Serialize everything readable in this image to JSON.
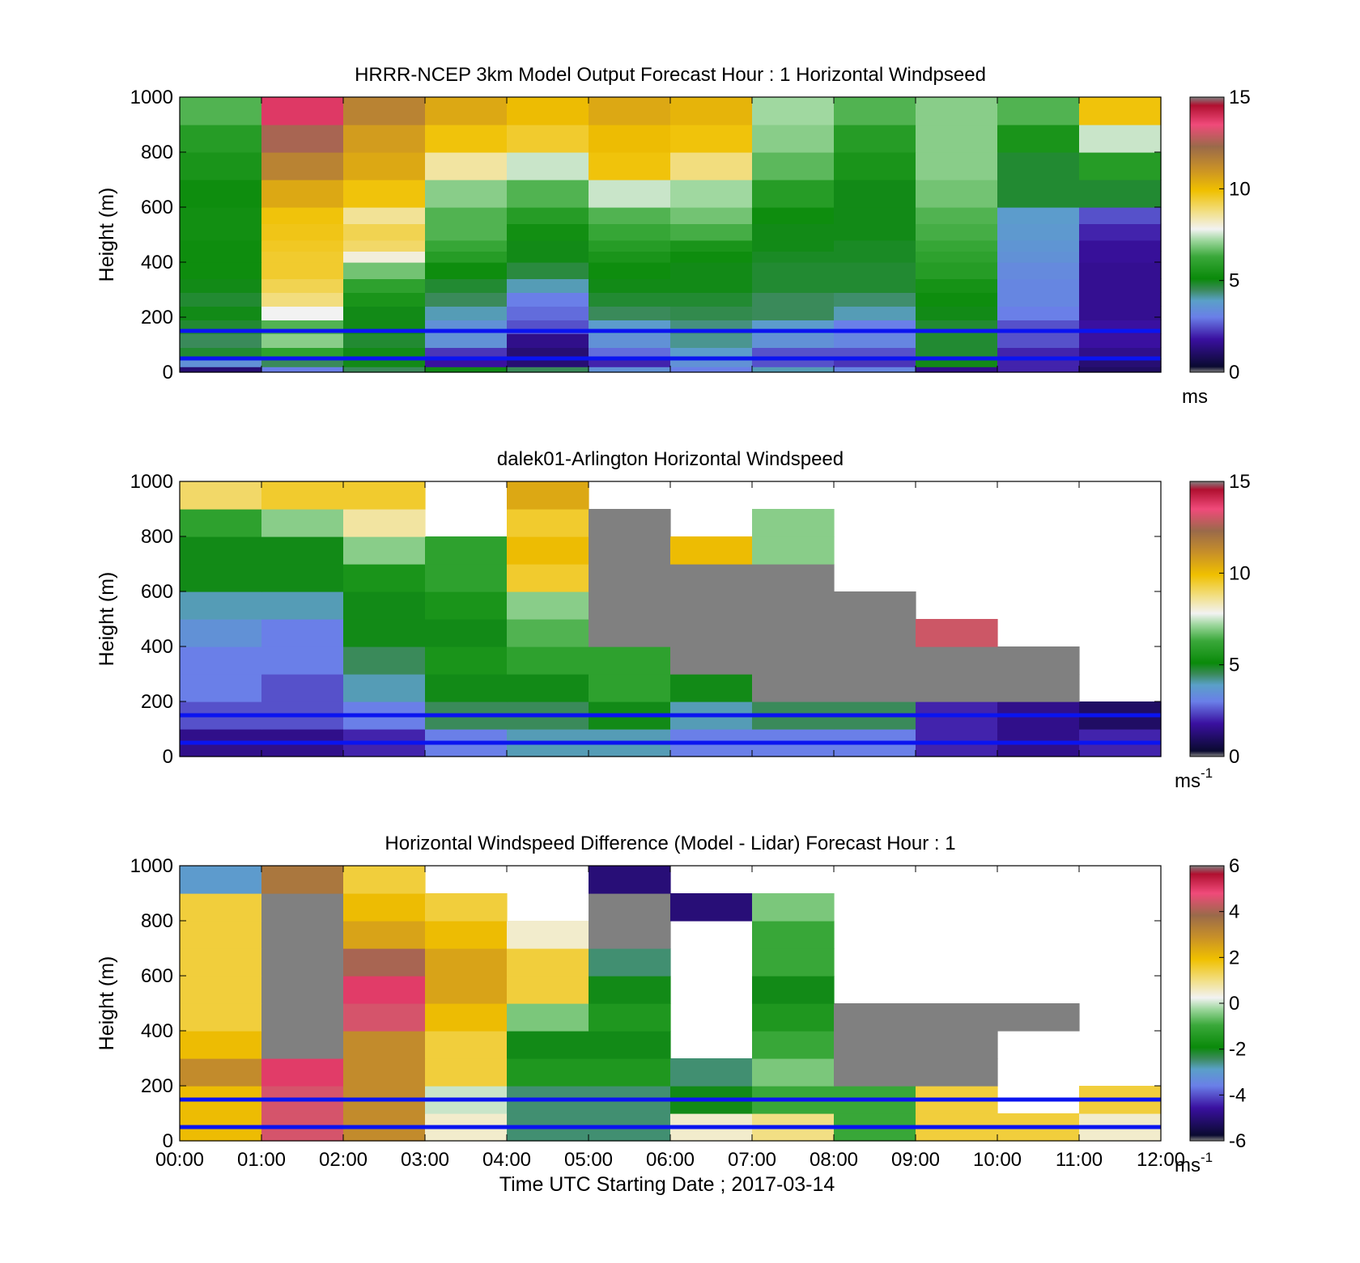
{
  "chart_data": [
    {
      "type": "heatmap",
      "title": "HRRR-NCEP 3km Model Output   Forecast Hour : 1 Horizontal Windpseed",
      "ylabel": "Height (m)",
      "xlabel": "",
      "ylim": [
        0,
        1000
      ],
      "yticks": [
        "0",
        "200",
        "400",
        "600",
        "800",
        "1000"
      ],
      "xticks": [
        "",
        "",
        "",
        "",
        "",
        "",
        "",
        "",
        "",
        "",
        "",
        "",
        ""
      ],
      "colorbar": {
        "min": 0,
        "max": 15,
        "ticks": [
          "0",
          "5",
          "10",
          "15"
        ],
        "unit": "ms",
        "unit_sup": ""
      },
      "hlines": [
        150,
        50
      ],
      "x_hours": [
        0,
        1,
        2,
        3,
        4,
        5,
        6,
        7,
        8,
        9,
        10,
        11,
        12
      ],
      "height_levels": [
        0,
        20,
        50,
        90,
        140,
        190,
        240,
        290,
        340,
        400,
        440,
        480,
        540,
        600,
        700,
        800,
        900,
        1000
      ],
      "values": [
        [
          1.2,
          3.0,
          4.5,
          5.0,
          4.5,
          3.5,
          3.0,
          4.0,
          3.2,
          1.5,
          2.0,
          1.0
        ],
        [
          3.5,
          4.5,
          5.0,
          1.8,
          1.2,
          2.0,
          3.5,
          2.5,
          2.2,
          5.0,
          2.0,
          1.2
        ],
        [
          4.8,
          6.0,
          5.0,
          2.2,
          1.2,
          2.8,
          3.8,
          2.5,
          2.5,
          4.8,
          2.0,
          1.5
        ],
        [
          4.5,
          7.0,
          4.8,
          3.5,
          1.5,
          3.5,
          4.2,
          3.5,
          3.2,
          4.8,
          2.5,
          1.8
        ],
        [
          4.8,
          6.5,
          5.0,
          3.5,
          2.5,
          3.8,
          4.3,
          3.8,
          3.0,
          4.8,
          2.5,
          1.8
        ],
        [
          5.0,
          7.8,
          5.0,
          4.0,
          2.8,
          4.5,
          4.6,
          4.5,
          4.0,
          5.0,
          3.0,
          1.6
        ],
        [
          4.8,
          8.8,
          5.5,
          4.5,
          3.0,
          4.8,
          4.8,
          4.5,
          4.4,
          5.2,
          3.2,
          1.6
        ],
        [
          5.0,
          9.2,
          6.0,
          4.8,
          4.0,
          5.0,
          5.0,
          4.8,
          4.8,
          5.4,
          3.2,
          1.6
        ],
        [
          5.2,
          9.5,
          6.8,
          5.2,
          4.7,
          5.2,
          5.0,
          4.8,
          4.8,
          5.8,
          3.3,
          1.6
        ],
        [
          5.2,
          9.5,
          8.0,
          5.8,
          5.0,
          5.5,
          5.2,
          4.9,
          4.9,
          6.0,
          3.5,
          1.7
        ],
        [
          5.2,
          9.6,
          9.0,
          6.2,
          5.0,
          5.8,
          5.5,
          5.0,
          4.9,
          6.2,
          3.6,
          1.7
        ],
        [
          5.3,
          9.7,
          9.2,
          6.5,
          5.3,
          6.2,
          6.4,
          5.0,
          5.0,
          6.4,
          3.7,
          2.0
        ],
        [
          5.3,
          9.8,
          8.6,
          6.5,
          5.8,
          6.5,
          6.8,
          5.2,
          5.0,
          6.5,
          3.8,
          2.5
        ],
        [
          5.2,
          10.5,
          9.8,
          7.0,
          6.5,
          7.5,
          7.2,
          5.8,
          5.0,
          6.8,
          4.8,
          4.8
        ],
        [
          5.5,
          11.5,
          10.5,
          8.5,
          7.5,
          9.8,
          8.8,
          6.6,
          5.5,
          7.0,
          4.8,
          5.8
        ],
        [
          5.8,
          12.5,
          10.8,
          9.8,
          9.5,
          10.0,
          9.8,
          7.0,
          5.8,
          7.0,
          5.5,
          7.5
        ],
        [
          6.5,
          13.8,
          11.5,
          10.5,
          10.0,
          10.5,
          10.2,
          7.2,
          6.5,
          7.0,
          6.5,
          9.8
        ]
      ]
    },
    {
      "type": "heatmap",
      "title": "dalek01-Arlington  Horizontal Windspeed",
      "ylabel": "Height (m)",
      "xlabel": "",
      "ylim": [
        0,
        1000
      ],
      "yticks": [
        "0",
        "200",
        "400",
        "600",
        "800",
        "1000"
      ],
      "xticks": [
        "",
        "",
        "",
        "",
        "",
        "",
        "",
        "",
        "",
        "",
        "",
        "",
        ""
      ],
      "colorbar": {
        "min": 0,
        "max": 15,
        "ticks": [
          "0",
          "5",
          "10",
          "15"
        ],
        "unit": "ms",
        "unit_sup": "-1"
      },
      "hlines": [
        150,
        50
      ],
      "x_hours": [
        0,
        1,
        2,
        3,
        4,
        5,
        6,
        7,
        8,
        9,
        10,
        11,
        12
      ],
      "height_levels": [
        0,
        100,
        200,
        300,
        400,
        500,
        600,
        700,
        800,
        900,
        1000
      ],
      "values": [
        [
          1.5,
          1.5,
          2.0,
          3.0,
          4.0,
          4.0,
          3.0,
          3.0,
          3.0,
          2.0,
          1.5,
          2.0
        ],
        [
          2.5,
          2.5,
          3.0,
          4.5,
          4.5,
          5.0,
          4.0,
          4.5,
          4.5,
          2.0,
          1.5,
          1.0
        ],
        [
          3.0,
          2.5,
          4.0,
          5.0,
          5.0,
          6.0,
          5.0,
          16.0,
          16.0,
          16.0,
          16.0,
          null
        ],
        [
          3.0,
          3.0,
          4.5,
          5.5,
          6.0,
          6.0,
          16.0,
          16.0,
          16.0,
          16.0,
          16.0,
          null
        ],
        [
          3.5,
          3.0,
          5.0,
          5.0,
          6.5,
          16.0,
          16.0,
          16.0,
          16.0,
          13.0,
          null,
          null
        ],
        [
          4.0,
          4.0,
          5.0,
          5.5,
          7.0,
          16.0,
          16.0,
          16.0,
          16.0,
          null,
          null,
          null
        ],
        [
          5.0,
          5.0,
          5.5,
          6.0,
          9.5,
          16.0,
          16.0,
          16.0,
          null,
          null,
          null,
          null
        ],
        [
          5.0,
          5.0,
          7.0,
          6.0,
          10.0,
          16.0,
          10.0,
          7.0,
          null,
          null,
          null,
          null
        ],
        [
          6.0,
          7.0,
          8.5,
          null,
          9.5,
          16.0,
          null,
          7.0,
          null,
          null,
          null,
          null
        ],
        [
          9.0,
          9.5,
          9.5,
          null,
          10.5,
          null,
          null,
          null,
          null,
          null,
          null,
          null
        ]
      ]
    },
    {
      "type": "heatmap",
      "title": "Horizontal Windspeed Difference (Model - Lidar) Forecast Hour : 1",
      "ylabel": "Height (m)",
      "xlabel": "Time UTC  Starting Date ; 2017-03-14",
      "ylim": [
        0,
        1000
      ],
      "yticks": [
        "0",
        "200",
        "400",
        "600",
        "800",
        "1000"
      ],
      "xticks": [
        "00:00",
        "01:00",
        "02:00",
        "03:00",
        "04:00",
        "05:00",
        "06:00",
        "07:00",
        "08:00",
        "09:00",
        "10:00",
        "11:00",
        "12:00"
      ],
      "colorbar": {
        "min": -6,
        "max": 6,
        "ticks": [
          "-6",
          "-4",
          "-2",
          "0",
          "2",
          "4",
          "6"
        ],
        "unit": "ms",
        "unit_sup": "-1"
      },
      "hlines": [
        150,
        50
      ],
      "x_hours": [
        0,
        1,
        2,
        3,
        4,
        5,
        6,
        7,
        8,
        9,
        10,
        11,
        12
      ],
      "height_levels": [
        0,
        100,
        200,
        300,
        400,
        500,
        600,
        700,
        800,
        900,
        1000
      ],
      "values": [
        [
          2.0,
          4.5,
          3.0,
          0.5,
          -2.5,
          -2.5,
          0.5,
          1.0,
          -1.0,
          1.5,
          1.5,
          0.5
        ],
        [
          2.0,
          4.5,
          3.0,
          0.0,
          -2.5,
          -2.5,
          -2.0,
          -1.0,
          -1.0,
          1.5,
          null,
          1.5
        ],
        [
          3.0,
          5.0,
          3.0,
          1.5,
          -1.5,
          -1.5,
          -2.5,
          -0.5,
          6.5,
          6.5,
          null,
          null
        ],
        [
          2.0,
          6.5,
          3.0,
          1.5,
          -2.0,
          -2.0,
          null,
          -1.0,
          6.5,
          6.5,
          null,
          null
        ],
        [
          1.5,
          6.5,
          4.5,
          2.0,
          -0.5,
          -1.5,
          null,
          -1.5,
          6.5,
          6.5,
          6.5,
          null
        ],
        [
          1.5,
          6.5,
          5.0,
          2.5,
          1.5,
          -2.0,
          null,
          -2.0,
          null,
          null,
          null,
          null
        ],
        [
          1.5,
          6.5,
          4.0,
          2.5,
          1.5,
          -2.5,
          null,
          -1.0,
          null,
          null,
          null,
          null
        ],
        [
          1.5,
          6.5,
          2.5,
          2.0,
          0.5,
          6.5,
          null,
          -1.0,
          null,
          null,
          null,
          null
        ],
        [
          1.5,
          6.5,
          2.0,
          1.5,
          null,
          6.5,
          -5.0,
          -0.5,
          null,
          null,
          null,
          null
        ],
        [
          -3.0,
          3.5,
          1.5,
          null,
          null,
          -5.0,
          null,
          null,
          null,
          null,
          null,
          null
        ]
      ]
    }
  ]
}
